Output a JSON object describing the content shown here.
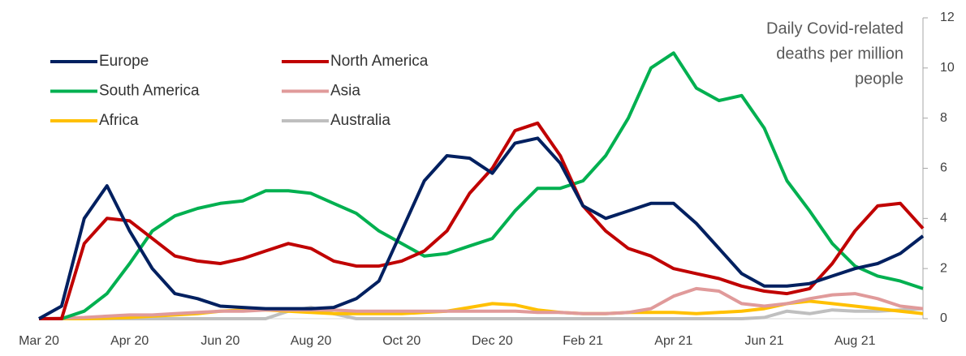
{
  "chart_data": {
    "type": "line",
    "ylabel": [
      "Daily Covid-related",
      "deaths per million",
      "people"
    ],
    "categories": [
      "Mar 20",
      null,
      null,
      null,
      "Apr 20",
      null,
      null,
      null,
      "Jun 20",
      null,
      null,
      null,
      "Aug 20",
      null,
      null,
      null,
      "Oct 20",
      null,
      null,
      null,
      "Dec 20",
      null,
      null,
      null,
      "Feb 21",
      null,
      null,
      null,
      "Apr 21",
      null,
      null,
      null,
      "Jun 21",
      null,
      null,
      null,
      "Aug 21",
      null,
      null,
      null
    ],
    "series": [
      {
        "name": "Europe",
        "color": "#002060",
        "values": [
          0,
          0.5,
          4,
          5.3,
          3.5,
          2,
          1.0,
          0.8,
          0.5,
          0.45,
          0.4,
          0.4,
          0.4,
          0.45,
          0.8,
          1.5,
          3.5,
          5.5,
          6.5,
          6.4,
          5.8,
          7.0,
          7.2,
          6.2,
          4.5,
          4.0,
          4.3,
          4.6,
          4.6,
          3.8,
          2.8,
          1.8,
          1.3,
          1.3,
          1.4,
          1.7,
          2.0,
          2.2,
          2.6,
          3.3
        ]
      },
      {
        "name": "North America",
        "color": "#c00000",
        "values": [
          0,
          0,
          3.0,
          4.0,
          3.9,
          3.2,
          2.5,
          2.3,
          2.2,
          2.4,
          2.7,
          3.0,
          2.8,
          2.3,
          2.1,
          2.1,
          2.3,
          2.7,
          3.5,
          5.0,
          6.0,
          7.5,
          7.8,
          6.5,
          4.5,
          3.5,
          2.8,
          2.5,
          2.0,
          1.8,
          1.6,
          1.3,
          1.1,
          1.0,
          1.2,
          2.2,
          3.5,
          4.5,
          4.6,
          3.6
        ]
      },
      {
        "name": "South America",
        "color": "#00b050",
        "values": [
          0,
          0,
          0.3,
          1.0,
          2.2,
          3.5,
          4.1,
          4.4,
          4.6,
          4.7,
          5.1,
          5.1,
          5.0,
          4.6,
          4.2,
          3.5,
          3.0,
          2.5,
          2.6,
          2.9,
          3.2,
          4.3,
          5.2,
          5.2,
          5.5,
          6.5,
          8.0,
          10.0,
          10.6,
          9.2,
          8.7,
          8.9,
          7.6,
          5.5,
          4.3,
          3.0,
          2.1,
          1.7,
          1.5,
          1.2
        ]
      },
      {
        "name": "Asia",
        "color": "#e09a9a",
        "values": [
          0,
          0.02,
          0.05,
          0.1,
          0.15,
          0.15,
          0.2,
          0.25,
          0.3,
          0.3,
          0.35,
          0.35,
          0.35,
          0.35,
          0.3,
          0.3,
          0.3,
          0.3,
          0.3,
          0.3,
          0.3,
          0.3,
          0.25,
          0.25,
          0.2,
          0.2,
          0.25,
          0.4,
          0.9,
          1.2,
          1.1,
          0.6,
          0.5,
          0.6,
          0.8,
          0.95,
          1.0,
          0.8,
          0.5,
          0.4
        ]
      },
      {
        "name": "Africa",
        "color": "#ffc000",
        "values": [
          0,
          0,
          0,
          0.02,
          0.05,
          0.1,
          0.15,
          0.2,
          0.3,
          0.35,
          0.35,
          0.3,
          0.25,
          0.2,
          0.2,
          0.2,
          0.2,
          0.25,
          0.3,
          0.45,
          0.6,
          0.55,
          0.35,
          0.25,
          0.2,
          0.2,
          0.25,
          0.25,
          0.25,
          0.2,
          0.25,
          0.3,
          0.4,
          0.6,
          0.7,
          0.6,
          0.5,
          0.4,
          0.3,
          0.2
        ]
      },
      {
        "name": "Australia",
        "color": "#bfbfbf",
        "values": [
          0,
          0,
          0,
          0,
          0,
          0,
          0,
          0,
          0,
          0,
          0,
          0.3,
          0.45,
          0.2,
          0,
          0,
          0,
          0,
          0,
          0,
          0,
          0,
          0,
          0,
          0,
          0,
          0,
          0,
          0,
          0,
          0,
          0,
          0.05,
          0.3,
          0.2,
          0.35,
          0.3,
          0.3,
          0.35,
          0.4
        ]
      }
    ],
    "ylim": [
      0,
      12
    ],
    "yticks": [
      0,
      2,
      4,
      6,
      8,
      10,
      12
    ],
    "legend": "upper left"
  }
}
